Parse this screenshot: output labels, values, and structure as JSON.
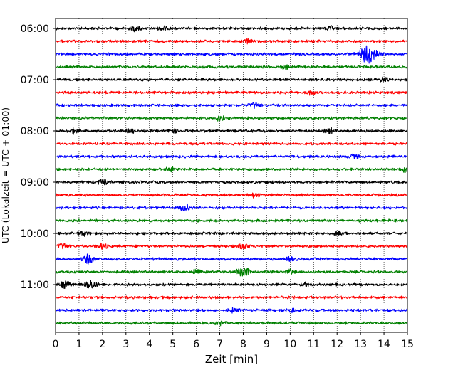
{
  "chart_data": {
    "type": "line",
    "title": "",
    "xlabel": "Zeit  [min]",
    "ylabel": "UTC (Lokalzeit = UTC + 01:00)",
    "xlim": [
      0,
      15
    ],
    "x_ticks": [
      0,
      1,
      2,
      3,
      4,
      5,
      6,
      7,
      8,
      9,
      10,
      11,
      12,
      13,
      14,
      15
    ],
    "x_tick_labels": [
      "0",
      "1",
      "2",
      "3",
      "4",
      "5",
      "6",
      "7",
      "8",
      "9",
      "10",
      "11",
      "12",
      "13",
      "14",
      "15"
    ],
    "y_tick_labels": [
      "06:00",
      "07:00",
      "08:00",
      "09:00",
      "10:00",
      "11:00"
    ],
    "y_tick_rows": [
      0,
      4,
      8,
      12,
      16,
      20
    ],
    "grid_x": true,
    "trace_minutes": 15,
    "trace_colors": [
      "#000000",
      "#ff0000",
      "#0000ff",
      "#008000"
    ],
    "traces": [
      {
        "start": "06:00",
        "color": "#000000",
        "events": [
          {
            "t": 3.4,
            "amp": 1.4
          },
          {
            "t": 4.6,
            "amp": 1.2
          },
          {
            "t": 11.7,
            "amp": 1.1
          }
        ]
      },
      {
        "start": "06:15",
        "color": "#ff0000",
        "events": [
          {
            "t": 8.2,
            "amp": 1.3
          }
        ]
      },
      {
        "start": "06:30",
        "color": "#0000ff",
        "events": [
          {
            "t": 13.4,
            "amp": 4.5
          },
          {
            "t": 13.2,
            "amp": 2.0
          }
        ]
      },
      {
        "start": "06:45",
        "color": "#008000",
        "events": [
          {
            "t": 9.8,
            "amp": 1.2
          }
        ]
      },
      {
        "start": "07:00",
        "color": "#000000",
        "events": [
          {
            "t": 14.0,
            "amp": 1.3
          }
        ]
      },
      {
        "start": "07:15",
        "color": "#ff0000",
        "events": [
          {
            "t": 10.9,
            "amp": 1.2
          }
        ]
      },
      {
        "start": "07:30",
        "color": "#0000ff",
        "events": [
          {
            "t": 8.5,
            "amp": 1.5
          }
        ]
      },
      {
        "start": "07:45",
        "color": "#008000",
        "events": [
          {
            "t": 7.0,
            "amp": 1.2
          }
        ]
      },
      {
        "start": "08:00",
        "color": "#000000",
        "events": [
          {
            "t": 0.8,
            "amp": 1.4
          },
          {
            "t": 3.2,
            "amp": 1.1
          },
          {
            "t": 5.0,
            "amp": 1.1
          },
          {
            "t": 11.7,
            "amp": 1.4
          }
        ]
      },
      {
        "start": "08:15",
        "color": "#ff0000",
        "events": []
      },
      {
        "start": "08:30",
        "color": "#0000ff",
        "events": [
          {
            "t": 12.7,
            "amp": 1.2
          }
        ]
      },
      {
        "start": "08:45",
        "color": "#008000",
        "events": [
          {
            "t": 4.9,
            "amp": 1.2
          },
          {
            "t": 14.9,
            "amp": 1.5
          }
        ]
      },
      {
        "start": "09:00",
        "color": "#000000",
        "events": [
          {
            "t": 2.0,
            "amp": 1.5
          }
        ]
      },
      {
        "start": "09:15",
        "color": "#ff0000",
        "events": [
          {
            "t": 8.5,
            "amp": 1.2
          }
        ]
      },
      {
        "start": "09:30",
        "color": "#0000ff",
        "events": [
          {
            "t": 5.5,
            "amp": 1.8
          }
        ]
      },
      {
        "start": "09:45",
        "color": "#008000",
        "events": []
      },
      {
        "start": "10:00",
        "color": "#000000",
        "events": [
          {
            "t": 1.2,
            "amp": 1.2
          },
          {
            "t": 12.1,
            "amp": 1.1
          }
        ]
      },
      {
        "start": "10:15",
        "color": "#ff0000",
        "events": [
          {
            "t": 0.3,
            "amp": 1.5
          },
          {
            "t": 2.0,
            "amp": 1.4
          },
          {
            "t": 8.0,
            "amp": 1.7
          }
        ]
      },
      {
        "start": "10:30",
        "color": "#0000ff",
        "events": [
          {
            "t": 1.4,
            "amp": 2.4
          },
          {
            "t": 10.0,
            "amp": 1.3
          }
        ]
      },
      {
        "start": "10:45",
        "color": "#008000",
        "events": [
          {
            "t": 8.0,
            "amp": 2.8
          },
          {
            "t": 6.0,
            "amp": 1.2
          },
          {
            "t": 10.0,
            "amp": 1.2
          }
        ]
      },
      {
        "start": "11:00",
        "color": "#000000",
        "events": [
          {
            "t": 0.4,
            "amp": 2.2
          },
          {
            "t": 1.5,
            "amp": 2.4
          },
          {
            "t": 10.7,
            "amp": 1.2
          }
        ]
      },
      {
        "start": "11:15",
        "color": "#ff0000",
        "events": []
      },
      {
        "start": "11:30",
        "color": "#0000ff",
        "events": [
          {
            "t": 7.6,
            "amp": 1.3
          },
          {
            "t": 10.0,
            "amp": 1.1
          }
        ]
      },
      {
        "start": "11:45",
        "color": "#008000",
        "events": [
          {
            "t": 7.0,
            "amp": 1.1
          }
        ]
      }
    ]
  }
}
